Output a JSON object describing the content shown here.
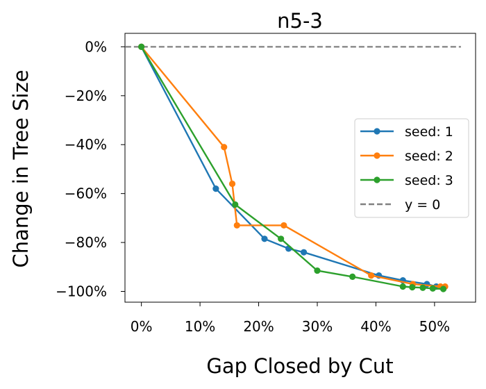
{
  "chart_data": {
    "type": "line",
    "title": "n5-3",
    "xlabel": "Gap Closed by Cut",
    "ylabel": "Change in Tree Size",
    "xlim": [
      -0.028,
      0.57
    ],
    "ylim": [
      -104.4,
      5.5
    ],
    "xticks": [
      0,
      0.1,
      0.2,
      0.3,
      0.4,
      0.5
    ],
    "xtick_labels": [
      "0%",
      "10%",
      "20%",
      "30%",
      "40%",
      "50%"
    ],
    "yticks": [
      0,
      -20,
      -40,
      -60,
      -80,
      -100
    ],
    "ytick_labels": [
      "0%",
      "−20%",
      "−40%",
      "−60%",
      "−80%",
      "−100%"
    ],
    "legend_position": "center-right",
    "series": [
      {
        "name": "seed: 1",
        "color": "#1f77b4",
        "x": [
          0.0,
          0.127,
          0.21,
          0.251,
          0.277,
          0.405,
          0.446,
          0.487,
          0.503
        ],
        "y": [
          0,
          -58,
          -78.5,
          -82.5,
          -84,
          -93.5,
          -95.5,
          -97,
          -98
        ]
      },
      {
        "name": "seed: 2",
        "color": "#ff7f0e",
        "x": [
          0.0,
          0.141,
          0.155,
          0.163,
          0.243,
          0.392,
          0.463,
          0.51,
          0.518
        ],
        "y": [
          0,
          -41,
          -56,
          -73,
          -73,
          -93.5,
          -97,
          -98,
          -98
        ]
      },
      {
        "name": "seed: 3",
        "color": "#2ca02c",
        "x": [
          0.0,
          0.16,
          0.238,
          0.3,
          0.36,
          0.446,
          0.462,
          0.48,
          0.497,
          0.515
        ],
        "y": [
          0,
          -64.5,
          -78.5,
          -91.5,
          -94,
          -98,
          -98.3,
          -98.5,
          -98.8,
          -99
        ]
      }
    ],
    "reference_line": {
      "label": "y = 0",
      "y": 0,
      "color": "#808080",
      "style": "dashed"
    }
  }
}
